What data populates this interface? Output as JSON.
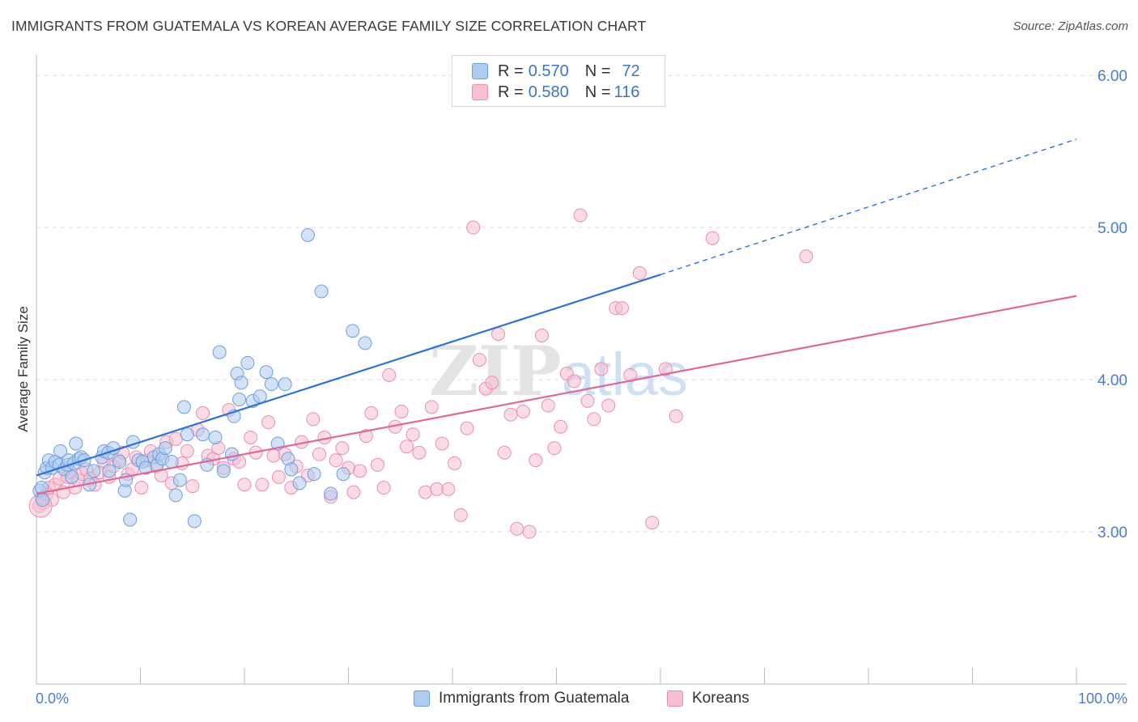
{
  "header": {
    "title": "IMMIGRANTS FROM GUATEMALA VS KOREAN AVERAGE FAMILY SIZE CORRELATION CHART",
    "source": "Source: ZipAtlas.com"
  },
  "legend_top": {
    "rows": [
      {
        "r_label": "R = ",
        "r_value": "0.570",
        "n_label": "N = ",
        "n_value": "72"
      },
      {
        "r_label": "R = ",
        "r_value": "0.580",
        "n_label": "N = ",
        "n_value": "116"
      }
    ]
  },
  "legend_bottom": {
    "items": [
      {
        "label": "Immigrants from Guatemala"
      },
      {
        "label": "Koreans"
      }
    ]
  },
  "colors": {
    "blue_fill": "#aecbf0",
    "blue_stroke": "#6e9fdc",
    "blue_line": "#2f72d4",
    "pink_fill": "#f7c0d2",
    "pink_stroke": "#e690b1",
    "pink_line": "#e0679a",
    "tick_text": "#4a7cc8",
    "grid": "#dcdcdc"
  },
  "chart_data": {
    "type": "scatter",
    "title": "IMMIGRANTS FROM GUATEMALA VS KOREAN AVERAGE FAMILY SIZE CORRELATION CHART",
    "xlabel": "",
    "ylabel": "Average Family Size",
    "x_unit": "percent",
    "xlim": [
      0,
      100
    ],
    "ylim": [
      2.0,
      6.08
    ],
    "x_ticks": [
      "0.0%",
      "100.0%"
    ],
    "y_ticks": [
      {
        "value": 3.0,
        "label": "3.00"
      },
      {
        "value": 4.0,
        "label": "4.00"
      },
      {
        "value": 5.0,
        "label": "5.00"
      },
      {
        "value": 6.0,
        "label": "6.00"
      }
    ],
    "grid": "horizontal dashed",
    "legend": "top-center and bottom",
    "watermark": "ZIPatlas",
    "series": [
      {
        "name": "Immigrants from Guatemala",
        "color": "blue",
        "R": 0.57,
        "N": 72,
        "trend": {
          "x_start": 0.0,
          "y_start": 3.37,
          "x_end": 60.0,
          "y_end": 4.69,
          "dash_x_end": 100.0,
          "dash_y_end": 5.58
        },
        "points": [
          [
            0.3,
            3.27
          ],
          [
            0.5,
            3.29
          ],
          [
            0.6,
            3.21
          ],
          [
            0.8,
            3.39
          ],
          [
            1.0,
            3.42
          ],
          [
            1.2,
            3.47
          ],
          [
            1.5,
            3.42
          ],
          [
            1.8,
            3.46
          ],
          [
            2.2,
            3.44
          ],
          [
            2.3,
            3.53
          ],
          [
            2.7,
            3.41
          ],
          [
            3.0,
            3.44
          ],
          [
            3.1,
            3.47
          ],
          [
            3.4,
            3.36
          ],
          [
            3.6,
            3.45
          ],
          [
            3.8,
            3.58
          ],
          [
            4.1,
            3.48
          ],
          [
            4.3,
            3.49
          ],
          [
            4.6,
            3.47
          ],
          [
            5.1,
            3.31
          ],
          [
            5.5,
            3.4
          ],
          [
            6.3,
            3.49
          ],
          [
            6.5,
            3.53
          ],
          [
            6.9,
            3.52
          ],
          [
            7.0,
            3.4
          ],
          [
            7.4,
            3.55
          ],
          [
            8.0,
            3.46
          ],
          [
            8.5,
            3.27
          ],
          [
            8.6,
            3.34
          ],
          [
            9.0,
            3.08
          ],
          [
            9.3,
            3.59
          ],
          [
            9.8,
            3.47
          ],
          [
            10.2,
            3.46
          ],
          [
            10.5,
            3.42
          ],
          [
            11.3,
            3.49
          ],
          [
            11.6,
            3.44
          ],
          [
            11.8,
            3.51
          ],
          [
            12.1,
            3.48
          ],
          [
            12.4,
            3.55
          ],
          [
            13.0,
            3.46
          ],
          [
            13.4,
            3.24
          ],
          [
            13.8,
            3.34
          ],
          [
            14.2,
            3.82
          ],
          [
            14.5,
            3.64
          ],
          [
            15.2,
            3.07
          ],
          [
            16.0,
            3.64
          ],
          [
            16.4,
            3.44
          ],
          [
            17.2,
            3.62
          ],
          [
            17.6,
            4.18
          ],
          [
            18.0,
            3.4
          ],
          [
            18.8,
            3.51
          ],
          [
            19.0,
            3.76
          ],
          [
            19.3,
            4.04
          ],
          [
            19.5,
            3.87
          ],
          [
            19.7,
            3.98
          ],
          [
            20.3,
            4.11
          ],
          [
            20.8,
            3.86
          ],
          [
            21.5,
            3.89
          ],
          [
            22.1,
            4.05
          ],
          [
            22.6,
            3.97
          ],
          [
            23.2,
            3.58
          ],
          [
            23.9,
            3.97
          ],
          [
            24.2,
            3.48
          ],
          [
            24.5,
            3.41
          ],
          [
            25.3,
            3.32
          ],
          [
            26.1,
            4.95
          ],
          [
            26.7,
            3.38
          ],
          [
            27.4,
            4.58
          ],
          [
            28.3,
            3.25
          ],
          [
            29.5,
            3.38
          ],
          [
            30.4,
            4.32
          ],
          [
            31.6,
            4.24
          ]
        ]
      },
      {
        "name": "Koreans",
        "color": "pink",
        "R": 0.58,
        "N": 116,
        "trend": {
          "x_start": 0.0,
          "y_start": 3.25,
          "x_end": 100.0,
          "y_end": 4.55
        },
        "points": [
          [
            0.3,
            3.17
          ],
          [
            0.5,
            3.22
          ],
          [
            0.7,
            3.19
          ],
          [
            1.0,
            3.25
          ],
          [
            1.2,
            3.29
          ],
          [
            1.5,
            3.21
          ],
          [
            1.8,
            3.31
          ],
          [
            2.2,
            3.35
          ],
          [
            2.6,
            3.26
          ],
          [
            3.0,
            3.36
          ],
          [
            3.3,
            3.39
          ],
          [
            3.7,
            3.29
          ],
          [
            4.0,
            3.34
          ],
          [
            4.4,
            3.38
          ],
          [
            4.8,
            3.41
          ],
          [
            5.2,
            3.35
          ],
          [
            5.6,
            3.31
          ],
          [
            6.1,
            3.39
          ],
          [
            6.5,
            3.46
          ],
          [
            7.0,
            3.36
          ],
          [
            7.4,
            3.43
          ],
          [
            7.9,
            3.47
          ],
          [
            8.3,
            3.52
          ],
          [
            8.8,
            3.38
          ],
          [
            9.2,
            3.41
          ],
          [
            9.6,
            3.49
          ],
          [
            10.1,
            3.29
          ],
          [
            10.6,
            3.47
          ],
          [
            11.0,
            3.53
          ],
          [
            11.5,
            3.43
          ],
          [
            12.0,
            3.37
          ],
          [
            12.5,
            3.59
          ],
          [
            13.0,
            3.32
          ],
          [
            13.4,
            3.61
          ],
          [
            14.0,
            3.45
          ],
          [
            14.5,
            3.53
          ],
          [
            15.0,
            3.3
          ],
          [
            15.5,
            3.67
          ],
          [
            16.0,
            3.78
          ],
          [
            16.5,
            3.5
          ],
          [
            17.0,
            3.48
          ],
          [
            17.5,
            3.55
          ],
          [
            18.0,
            3.42
          ],
          [
            18.5,
            3.8
          ],
          [
            19.0,
            3.48
          ],
          [
            19.5,
            3.46
          ],
          [
            20.0,
            3.31
          ],
          [
            20.6,
            3.62
          ],
          [
            21.1,
            3.52
          ],
          [
            21.7,
            3.31
          ],
          [
            22.3,
            3.72
          ],
          [
            22.8,
            3.5
          ],
          [
            23.3,
            3.36
          ],
          [
            23.9,
            3.51
          ],
          [
            24.5,
            3.29
          ],
          [
            25.0,
            3.43
          ],
          [
            25.5,
            3.59
          ],
          [
            26.1,
            3.37
          ],
          [
            26.6,
            3.74
          ],
          [
            27.2,
            3.51
          ],
          [
            27.7,
            3.62
          ],
          [
            28.3,
            3.23
          ],
          [
            28.8,
            3.47
          ],
          [
            29.4,
            3.55
          ],
          [
            30.0,
            3.42
          ],
          [
            30.5,
            3.26
          ],
          [
            31.1,
            3.4
          ],
          [
            31.7,
            3.63
          ],
          [
            32.2,
            3.78
          ],
          [
            32.8,
            3.44
          ],
          [
            33.4,
            3.29
          ],
          [
            33.9,
            4.03
          ],
          [
            34.5,
            3.69
          ],
          [
            35.1,
            3.79
          ],
          [
            35.6,
            3.56
          ],
          [
            36.2,
            3.64
          ],
          [
            36.8,
            3.52
          ],
          [
            37.4,
            3.26
          ],
          [
            38.0,
            3.82
          ],
          [
            38.5,
            3.28
          ],
          [
            39.0,
            3.58
          ],
          [
            39.6,
            3.28
          ],
          [
            40.2,
            3.45
          ],
          [
            40.8,
            3.11
          ],
          [
            41.4,
            3.68
          ],
          [
            42.0,
            5.0
          ],
          [
            42.6,
            4.13
          ],
          [
            43.2,
            3.94
          ],
          [
            43.8,
            3.98
          ],
          [
            44.4,
            4.3
          ],
          [
            45.0,
            3.52
          ],
          [
            45.6,
            3.77
          ],
          [
            46.2,
            3.02
          ],
          [
            46.8,
            3.79
          ],
          [
            47.4,
            3.0
          ],
          [
            48.0,
            3.47
          ],
          [
            48.6,
            4.29
          ],
          [
            49.2,
            3.83
          ],
          [
            49.8,
            3.55
          ],
          [
            50.4,
            3.69
          ],
          [
            51.0,
            4.04
          ],
          [
            51.7,
            3.99
          ],
          [
            52.3,
            5.08
          ],
          [
            53.0,
            3.86
          ],
          [
            53.6,
            3.74
          ],
          [
            54.3,
            4.07
          ],
          [
            55.0,
            3.83
          ],
          [
            55.7,
            4.47
          ],
          [
            56.3,
            4.47
          ],
          [
            57.1,
            4.03
          ],
          [
            58.0,
            4.7
          ],
          [
            59.2,
            3.06
          ],
          [
            60.5,
            4.07
          ],
          [
            61.5,
            3.76
          ],
          [
            65.0,
            4.93
          ],
          [
            74.0,
            4.81
          ]
        ]
      }
    ]
  }
}
